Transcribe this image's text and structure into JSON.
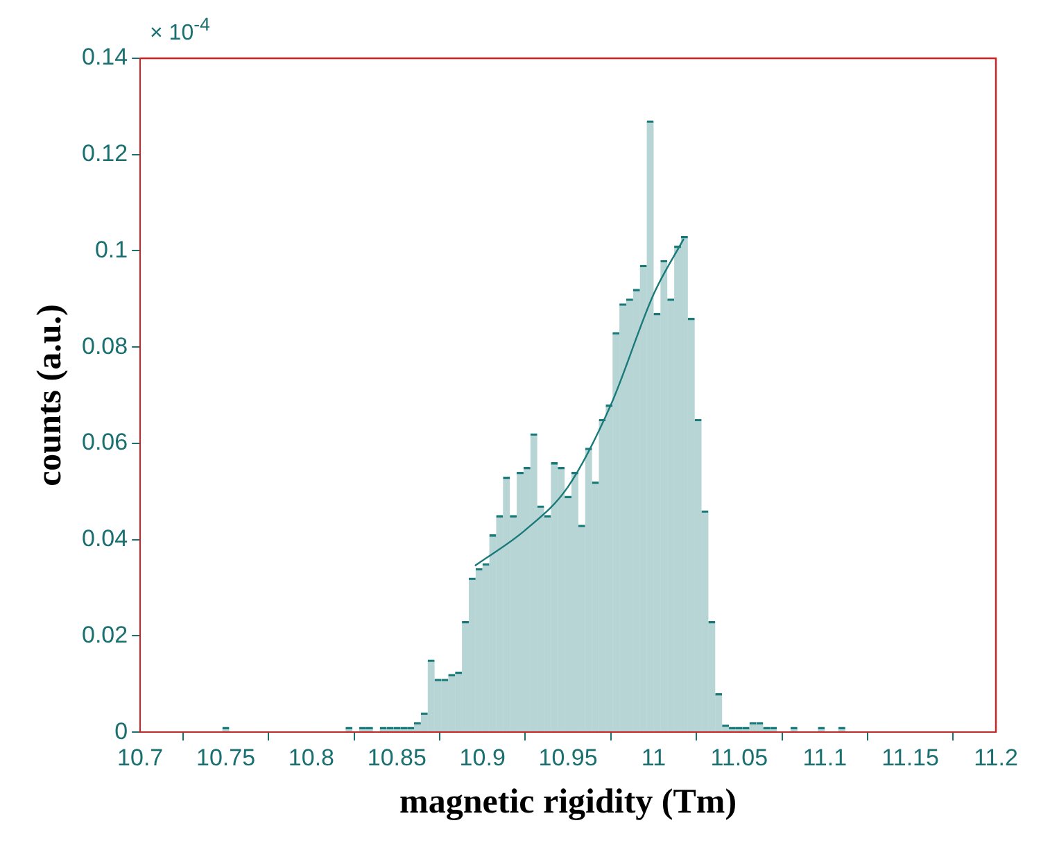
{
  "chart_data": {
    "type": "histogram",
    "xlabel": "magnetic rigidity (Tm)",
    "ylabel": "counts (a.u.)",
    "annotations": [
      "× 10$^{-4}$"
    ],
    "bins": [
      10.7,
      10.704,
      10.708,
      10.712,
      10.716,
      10.72,
      10.724,
      10.728,
      10.732,
      10.736,
      10.74,
      10.744,
      10.748,
      10.752,
      10.756,
      10.76,
      10.764,
      10.768,
      10.772,
      10.776,
      10.78,
      10.784,
      10.788,
      10.792,
      10.796,
      10.8,
      10.804,
      10.808,
      10.812,
      10.816,
      10.82,
      10.824,
      10.828,
      10.832,
      10.836,
      10.84,
      10.844,
      10.848,
      10.852,
      10.856,
      10.86,
      10.864,
      10.868,
      10.872,
      10.876,
      10.88,
      10.884,
      10.888,
      10.892,
      10.896,
      10.9,
      10.904,
      10.908,
      10.912,
      10.916,
      10.92,
      10.924,
      10.928,
      10.932,
      10.936,
      10.94,
      10.944,
      10.948,
      10.952,
      10.956,
      10.96,
      10.964,
      10.968,
      10.972,
      10.976,
      10.98,
      10.984,
      10.988,
      10.992,
      10.996,
      11.0,
      11.004,
      11.008,
      11.012,
      11.016,
      11.02,
      11.024,
      11.028,
      11.032,
      11.036,
      11.04,
      11.044,
      11.048,
      11.052,
      11.056,
      11.06,
      11.064,
      11.068,
      11.072,
      11.076,
      11.08,
      11.084,
      11.088,
      11.092,
      11.096,
      11.1,
      11.104,
      11.108,
      11.112,
      11.116,
      11.12,
      11.124,
      11.128,
      11.132,
      11.136,
      11.14,
      11.144,
      11.148,
      11.152,
      11.156,
      11.16,
      11.164,
      11.168,
      11.172,
      11.176,
      11.18,
      11.184,
      11.188,
      11.192,
      11.196,
      11.2
    ],
    "values": [
      0,
      0,
      0,
      0,
      0,
      0,
      0,
      0,
      0,
      0,
      0,
      0,
      0.001,
      0,
      0,
      0,
      0,
      0,
      0,
      0,
      0,
      0,
      0,
      0,
      0,
      0,
      0,
      0,
      0,
      0,
      0.001,
      0,
      0.001,
      0.001,
      0,
      0.001,
      0.001,
      0.001,
      0.001,
      0.001,
      0.002,
      0.004,
      0.015,
      0.011,
      0.011,
      0.012,
      0.0125,
      0.023,
      0.032,
      0.034,
      0.035,
      0.041,
      0.045,
      0.053,
      0.045,
      0.054,
      0.055,
      0.062,
      0.047,
      0.045,
      0.056,
      0.055,
      0.049,
      0.054,
      0.043,
      0.059,
      0.052,
      0.065,
      0.068,
      0.083,
      0.089,
      0.09,
      0.092,
      0.097,
      0.127,
      0.087,
      0.098,
      0.09,
      0.101,
      0.103,
      0.086,
      0.065,
      0.046,
      0.023,
      0.008,
      0.0015,
      0.001,
      0.001,
      0.001,
      0.002,
      0.002,
      0.001,
      0.001,
      0,
      0,
      0.001,
      0,
      0,
      0,
      0.001,
      0,
      0,
      0.001,
      0,
      0,
      0,
      0,
      0,
      0,
      0,
      0,
      0,
      0,
      0,
      0,
      0,
      0,
      0,
      0,
      0,
      0,
      0,
      0,
      0,
      0
    ],
    "color": "#1a7a7a",
    "series": [
      {
        "type": "line",
        "color": "#1a7a7a",
        "x": [
          10.8956,
          10.925,
          10.95,
          10.975,
          11.0,
          11.0176
        ],
        "values": [
          0.0346,
          0.042,
          0.051,
          0.068,
          0.091,
          0.1025
        ]
      }
    ],
    "xlim": [
      10.7,
      11.2
    ],
    "xticks": [
      10.7,
      10.75,
      10.8,
      10.85,
      10.9,
      10.95,
      11,
      11.05,
      11.1,
      11.15,
      11.2
    ],
    "ylim": [
      0,
      0.14
    ],
    "yticks": [
      0,
      0.02,
      0.04,
      0.06,
      0.08,
      0.1,
      0.12,
      0.14
    ]
  }
}
